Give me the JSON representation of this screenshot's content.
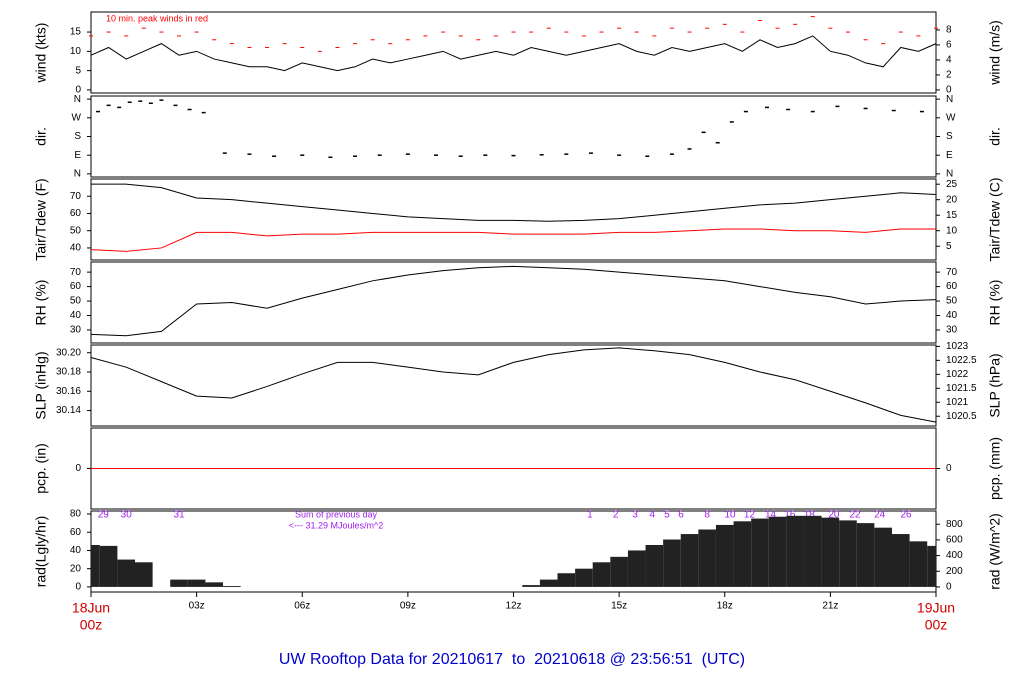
{
  "chart_data": [
    {
      "type": "line",
      "ylabel": "wind (kts)",
      "y2label": "wind (m/s)",
      "annotation": "10 min. peak winds in red",
      "xlim": [
        0,
        24
      ],
      "ylim": [
        -0.8,
        20.2
      ],
      "yticks": [
        0,
        5,
        10,
        15
      ],
      "y2lim": [
        -0.41,
        10.39
      ],
      "y2ticks": [
        0,
        2,
        4,
        6,
        8
      ],
      "x": [
        0,
        0.5,
        1,
        1.5,
        2,
        2.5,
        3,
        3.5,
        4,
        4.5,
        5,
        5.5,
        6,
        6.5,
        7,
        7.5,
        8,
        8.5,
        9,
        9.5,
        10,
        10.5,
        11,
        11.5,
        12,
        12.5,
        13,
        13.5,
        14,
        14.5,
        15,
        15.5,
        16,
        16.5,
        17,
        17.5,
        18,
        18.5,
        19,
        19.5,
        20,
        20.5,
        21,
        21.5,
        22,
        22.5,
        23,
        23.5,
        24
      ],
      "series": [
        {
          "color": "#000000",
          "marker": "line",
          "values": [
            9,
            11,
            8,
            10,
            12,
            9,
            10,
            8,
            7,
            6,
            6,
            5,
            7,
            6,
            5,
            6,
            8,
            7,
            8,
            9,
            10,
            8,
            9,
            10,
            9,
            11,
            10,
            9,
            10,
            11,
            12,
            10,
            9,
            11,
            10,
            11,
            12,
            10,
            13,
            11,
            12,
            14,
            10,
            9,
            7,
            6,
            11,
            10,
            12
          ]
        },
        {
          "color": "#ff0000",
          "marker": "dash",
          "values": [
            14,
            15,
            14,
            16,
            15,
            14,
            15,
            13,
            12,
            11,
            11,
            12,
            11,
            10,
            11,
            12,
            13,
            12,
            13,
            14,
            15,
            14,
            13,
            14,
            15,
            15,
            16,
            15,
            14,
            15,
            16,
            15,
            14,
            16,
            15,
            16,
            17,
            15,
            18,
            16,
            17,
            19,
            16,
            15,
            13,
            12,
            15,
            14,
            16
          ]
        }
      ]
    },
    {
      "type": "scatter",
      "ylabel": "dir.",
      "y2label": "dir.",
      "xlim": [
        0,
        24
      ],
      "ylim": [
        -15,
        375
      ],
      "yticks": [
        {
          "value": 0,
          "label": "N"
        },
        {
          "value": 90,
          "label": "E"
        },
        {
          "value": 180,
          "label": "S"
        },
        {
          "value": 270,
          "label": "W"
        },
        {
          "value": 360,
          "label": "N"
        }
      ],
      "y2lim": [
        -15,
        375
      ],
      "y2ticks": [
        {
          "value": 0,
          "label": "N"
        },
        {
          "value": 90,
          "label": "E"
        },
        {
          "value": 180,
          "label": "S"
        },
        {
          "value": 270,
          "label": "W"
        },
        {
          "value": 360,
          "label": "N"
        }
      ],
      "x": [
        0.2,
        0.5,
        0.8,
        1.1,
        1.4,
        1.7,
        2.0,
        2.4,
        2.8,
        3.2,
        3.8,
        4.5,
        5.2,
        6.0,
        6.8,
        7.5,
        8.2,
        9.0,
        9.8,
        10.5,
        11.2,
        12.0,
        12.8,
        13.5,
        14.2,
        15.0,
        15.8,
        16.5,
        17.0,
        17.4,
        17.8,
        18.2,
        18.6,
        19.2,
        19.8,
        20.5,
        21.2,
        22.0,
        22.8,
        23.6
      ],
      "series": [
        {
          "color": "#000000",
          "values": [
            300,
            330,
            320,
            345,
            350,
            340,
            355,
            330,
            310,
            295,
            100,
            95,
            85,
            90,
            80,
            85,
            90,
            95,
            90,
            85,
            90,
            88,
            92,
            95,
            100,
            90,
            85,
            95,
            120,
            200,
            150,
            250,
            300,
            320,
            310,
            300,
            325,
            315,
            305,
            300
          ]
        }
      ]
    },
    {
      "type": "line",
      "ylabel": "Tair/Tdew (F)",
      "y2label": "Tair/Tdew (C)",
      "xlim": [
        0,
        24
      ],
      "ylim": [
        33,
        80
      ],
      "yticks": [
        40,
        50,
        60,
        70
      ],
      "y2lim": [
        0.56,
        26.67
      ],
      "y2ticks": [
        5,
        10,
        15,
        20,
        25
      ],
      "x": [
        0,
        1,
        2,
        3,
        4,
        5,
        6,
        7,
        8,
        9,
        10,
        11,
        12,
        13,
        14,
        15,
        16,
        17,
        18,
        19,
        20,
        21,
        22,
        23,
        24
      ],
      "series": [
        {
          "color": "#000000",
          "marker": "line",
          "values": [
            77,
            77,
            75,
            69,
            68,
            66,
            64,
            62,
            60,
            58,
            57,
            56,
            56,
            55.5,
            56,
            57,
            59,
            61,
            63,
            65,
            66,
            68,
            70,
            72,
            71
          ]
        },
        {
          "color": "#ff0000",
          "marker": "line",
          "values": [
            39,
            38,
            40,
            49,
            49,
            47,
            48,
            48,
            49,
            49,
            49,
            49,
            48,
            48,
            48,
            49,
            49,
            50,
            51,
            51,
            50,
            50,
            49,
            51,
            51
          ]
        }
      ]
    },
    {
      "type": "line",
      "ylabel": "RH (%)",
      "y2label": "RH (%)",
      "xlim": [
        0,
        24
      ],
      "ylim": [
        21,
        77
      ],
      "yticks": [
        30,
        40,
        50,
        60,
        70
      ],
      "y2lim": [
        21,
        77
      ],
      "y2ticks": [
        30,
        40,
        50,
        60,
        70
      ],
      "x": [
        0,
        1,
        2,
        3,
        4,
        5,
        6,
        7,
        8,
        9,
        10,
        11,
        12,
        13,
        14,
        15,
        16,
        17,
        18,
        19,
        20,
        21,
        22,
        23,
        24
      ],
      "series": [
        {
          "color": "#000000",
          "marker": "line",
          "values": [
            27,
            26,
            29,
            48,
            49,
            45,
            52,
            58,
            64,
            68,
            71,
            73,
            74,
            73,
            72,
            70,
            68,
            66,
            64,
            60,
            56,
            53,
            48,
            50,
            51
          ]
        }
      ]
    },
    {
      "type": "line",
      "ylabel": "SLP (inHg)",
      "y2label": "SLP (hPa)",
      "xlim": [
        0,
        24
      ],
      "ylim": [
        30.124,
        30.208
      ],
      "yticks": [
        {
          "value": 30.2,
          "label": "30.20"
        },
        30.18,
        30.16,
        30.14
      ],
      "y2lim": [
        1020.15,
        1023.05
      ],
      "y2ticks": [
        1020.5,
        1021,
        1021.5,
        1022,
        1022.5,
        1023
      ],
      "x": [
        0,
        1,
        2,
        3,
        4,
        5,
        6,
        7,
        8,
        9,
        10,
        11,
        12,
        13,
        14,
        15,
        16,
        17,
        18,
        19,
        20,
        21,
        22,
        23,
        24
      ],
      "series": [
        {
          "color": "#000000",
          "marker": "line",
          "values": [
            30.195,
            30.185,
            30.17,
            30.155,
            30.153,
            30.165,
            30.178,
            30.19,
            30.19,
            30.185,
            30.18,
            30.177,
            30.19,
            30.198,
            30.203,
            30.205,
            30.202,
            30.198,
            30.19,
            30.18,
            30.172,
            30.16,
            30.148,
            30.135,
            30.128
          ]
        }
      ]
    },
    {
      "type": "line",
      "ylabel": "pcp. (in)",
      "y2label": "pcp. (mm)",
      "xlim": [
        0,
        24
      ],
      "ylim": [
        -1,
        1
      ],
      "yticks": [
        0
      ],
      "y2lim": [
        -1,
        1
      ],
      "y2ticks": [
        0
      ],
      "x": [
        0,
        24
      ],
      "series": [
        {
          "color": "#ff0000",
          "marker": "line",
          "values": [
            0,
            0
          ]
        }
      ]
    },
    {
      "type": "bar",
      "ylabel": "rad(Lgly/hr)",
      "y2label": "rad (W/m^2)",
      "annotations": [
        "Sum of previous day",
        "<--- 31.29 MJoules/m^2"
      ],
      "hour_labels": [
        {
          "x": 0.35,
          "label": "29"
        },
        {
          "x": 1.0,
          "label": "30"
        },
        {
          "x": 2.5,
          "label": "31"
        },
        {
          "x": 14.17,
          "label": "1"
        },
        {
          "x": 14.9,
          "label": "2"
        },
        {
          "x": 15.45,
          "label": "3"
        },
        {
          "x": 15.94,
          "label": "4"
        },
        {
          "x": 16.36,
          "label": "5"
        },
        {
          "x": 16.76,
          "label": "6"
        },
        {
          "x": 17.5,
          "label": "8"
        },
        {
          "x": 18.15,
          "label": "10"
        },
        {
          "x": 18.7,
          "label": "12"
        },
        {
          "x": 19.3,
          "label": "14"
        },
        {
          "x": 19.85,
          "label": "16"
        },
        {
          "x": 20.4,
          "label": "18"
        },
        {
          "x": 21.1,
          "label": "20"
        },
        {
          "x": 21.7,
          "label": "22"
        },
        {
          "x": 22.4,
          "label": "24"
        },
        {
          "x": 23.15,
          "label": "26"
        }
      ],
      "xlim": [
        0,
        24
      ],
      "ylim": [
        -5.6,
        83.3
      ],
      "yticks": [
        0,
        20,
        40,
        60,
        80
      ],
      "y2lim": [
        -65,
        969
      ],
      "y2ticks": [
        0,
        200,
        400,
        600,
        800
      ],
      "xticks": [
        {
          "value": 0,
          "label": "00z"
        },
        {
          "value": 3,
          "label": "03z"
        },
        {
          "value": 6,
          "label": "06z"
        },
        {
          "value": 9,
          "label": "09z"
        },
        {
          "value": 12,
          "label": "12z"
        },
        {
          "value": 15,
          "label": "15z"
        },
        {
          "value": 18,
          "label": "18z"
        },
        {
          "value": 21,
          "label": "21z"
        },
        {
          "value": 24,
          "label": "00z"
        }
      ],
      "date_labels": [
        "18Jun",
        "19Jun"
      ],
      "x": [
        0,
        0.5,
        1,
        1.5,
        2,
        2.5,
        3,
        3.5,
        4,
        4.5,
        5,
        5.5,
        6,
        6.5,
        7,
        7.5,
        8,
        8.5,
        9,
        9.5,
        10,
        10.5,
        11,
        11.5,
        12,
        12.5,
        13,
        13.5,
        14,
        14.5,
        15,
        15.5,
        16,
        16.5,
        17,
        17.5,
        18,
        18.5,
        19,
        19.5,
        20,
        20.5,
        21,
        21.5,
        22,
        22.5,
        23,
        23.5,
        24
      ],
      "series": [
        {
          "color": "#222222",
          "values": [
            46,
            45,
            30,
            27,
            0,
            8,
            8,
            5,
            1,
            0,
            0,
            0,
            0,
            0,
            0,
            0,
            0,
            0,
            0,
            0,
            0,
            0,
            0,
            0,
            0,
            2,
            8,
            15,
            20,
            27,
            33,
            40,
            46,
            52,
            58,
            63,
            68,
            72,
            75,
            77,
            78,
            78,
            76,
            73,
            70,
            65,
            58,
            50,
            45
          ]
        }
      ]
    }
  ],
  "title": "UW Rooftop Data for 20210617  to  20210618 @ 23:56:51  (UTC)"
}
